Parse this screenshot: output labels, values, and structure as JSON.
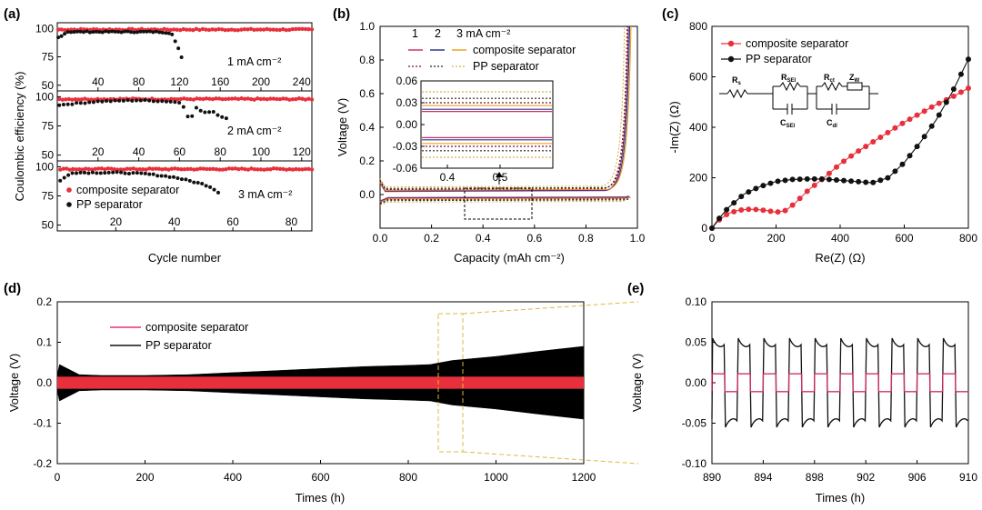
{
  "colors": {
    "composite": "#e8303c",
    "pp": "#111111",
    "orange": "#f0a020",
    "navy": "#2a3a8a",
    "magenta": "#d0306a",
    "brown": "#7a4a20",
    "dashbox": "#e0b840"
  },
  "panels": {
    "a": {
      "label": "(a)",
      "ylabel": "Coulombic efficiency (%)",
      "xlabel": "Cycle number",
      "legend": [
        "composite separator",
        "PP separator"
      ],
      "subplots": [
        {
          "annotation": "1 mA cm⁻²",
          "xticks": [
            "40",
            "80",
            "120",
            "160",
            "200",
            "240"
          ],
          "yticks": [
            "100",
            "75",
            "50"
          ]
        },
        {
          "annotation": "2 mA cm⁻²",
          "xticks": [
            "20",
            "40",
            "60",
            "80",
            "100",
            "120"
          ],
          "yticks": [
            "100",
            "75",
            "50"
          ]
        },
        {
          "annotation": "3 mA cm⁻²",
          "xticks": [
            "20",
            "40",
            "60",
            "80"
          ],
          "yticks": [
            "100",
            "75",
            "50"
          ]
        }
      ]
    },
    "b": {
      "label": "(b)",
      "xlabel": "Capacity (mAh cm⁻²)",
      "ylabel": "Voltage (V)",
      "xticks": [
        "0.0",
        "0.2",
        "0.4",
        "0.6",
        "0.8",
        "1.0"
      ],
      "yticks": [
        "1.0",
        "0.8",
        "0.6",
        "0.4",
        "0.2",
        "0.0"
      ],
      "legend_header": [
        "1",
        "2",
        "3 mA cm⁻²"
      ],
      "legend": [
        "composite separator",
        "PP separator"
      ],
      "inset": {
        "yticks": [
          "0.06",
          "0.03",
          "0.00",
          "-0.03",
          "-0.06"
        ],
        "xticks": [
          "0.4",
          "0.5"
        ]
      }
    },
    "c": {
      "label": "(c)",
      "xlabel": "Re(Z) (Ω)",
      "ylabel": "-Im(Z) (Ω)",
      "xticks": [
        "0",
        "200",
        "400",
        "600",
        "800"
      ],
      "yticks": [
        "800",
        "600",
        "400",
        "200",
        "0"
      ],
      "legend": [
        "composite separator",
        "PP separator"
      ],
      "circuit": {
        "labels": [
          "R",
          "s",
          "R",
          "SEI",
          "R",
          "ct",
          "Z",
          "W",
          "C",
          "SEI",
          "C",
          "dl"
        ]
      }
    },
    "d": {
      "label": "(d)",
      "xlabel": "Times (h)",
      "ylabel": "Voltage (V)",
      "xticks": [
        "0",
        "200",
        "400",
        "600",
        "800",
        "1000",
        "1200"
      ],
      "yticks": [
        "0.2",
        "0.1",
        "0.0",
        "-0.1",
        "-0.2"
      ],
      "legend": [
        "composite separator",
        "PP separator"
      ]
    },
    "e": {
      "label": "(e)",
      "xlabel": "Times (h)",
      "ylabel": "Voltage (V)",
      "xticks": [
        "890",
        "894",
        "898",
        "902",
        "906",
        "910"
      ],
      "yticks": [
        "0.10",
        "0.05",
        "0.00",
        "-0.05",
        "-0.10"
      ]
    }
  },
  "chart_data": [
    {
      "panel": "a",
      "type": "scatter",
      "subplots": [
        {
          "rate": "1 mA cm⁻²",
          "xlim": [
            0,
            250
          ],
          "ylim": [
            45,
            105
          ],
          "series": [
            {
              "name": "composite separator",
              "x": [
                1,
                250
              ],
              "y": [
                99,
                99
              ]
            },
            {
              "name": "PP separator",
              "x": [
                1,
                10,
                50,
                100,
                112,
                115,
                118,
                120,
                122
              ],
              "y": [
                92,
                97,
                97,
                97,
                96,
                90,
                84,
                80,
                75
              ]
            }
          ]
        },
        {
          "rate": "2 mA cm⁻²",
          "xlim": [
            0,
            125
          ],
          "ylim": [
            45,
            105
          ],
          "series": [
            {
              "name": "composite separator",
              "x": [
                1,
                125
              ],
              "y": [
                98,
                98
              ]
            },
            {
              "name": "PP separator",
              "x": [
                1,
                20,
                40,
                55,
                60,
                63,
                65,
                68,
                72,
                76,
                80,
                83
              ],
              "y": [
                93,
                96,
                97,
                96,
                95,
                90,
                78,
                91,
                86,
                88,
                83,
                82
              ]
            }
          ]
        },
        {
          "rate": "3 mA cm⁻²",
          "xlim": [
            0,
            87
          ],
          "ylim": [
            45,
            105
          ],
          "series": [
            {
              "name": "composite separator",
              "x": [
                1,
                87
              ],
              "y": [
                98,
                98
              ]
            },
            {
              "name": "PP separator",
              "x": [
                1,
                5,
                20,
                30,
                40,
                45,
                50,
                53,
                55
              ],
              "y": [
                88,
                95,
                95,
                94,
                91,
                88,
                85,
                82,
                78
              ]
            }
          ]
        }
      ]
    },
    {
      "panel": "b",
      "type": "line",
      "xlim": [
        0,
        1.0
      ],
      "ylim": [
        -0.2,
        1.0
      ],
      "series": [
        {
          "name": "composite 1 mA cm⁻²",
          "plateau": 0.018
        },
        {
          "name": "composite 2 mA cm⁻²",
          "plateau": 0.021
        },
        {
          "name": "composite 3 mA cm⁻²",
          "plateau": 0.026
        },
        {
          "name": "PP 1 mA cm⁻²",
          "plateau": 0.03
        },
        {
          "name": "PP 2 mA cm⁻²",
          "plateau": 0.036
        },
        {
          "name": "PP 3 mA cm⁻²",
          "plateau": 0.045
        }
      ],
      "inset": {
        "xlim": [
          0.35,
          0.6
        ],
        "ylim": [
          -0.06,
          0.06
        ]
      }
    },
    {
      "panel": "c",
      "type": "scatter",
      "xlim": [
        0,
        800
      ],
      "ylim": [
        0,
        800
      ],
      "series": [
        {
          "name": "composite separator",
          "x": [
            0,
            20,
            50,
            80,
            110,
            140,
            170,
            200,
            230,
            260,
            300,
            350,
            400,
            450,
            500,
            550,
            600,
            650,
            700,
            750,
            800
          ],
          "y": [
            0,
            30,
            58,
            70,
            75,
            74,
            70,
            63,
            70,
            100,
            150,
            200,
            255,
            300,
            340,
            380,
            420,
            455,
            490,
            520,
            555
          ]
        },
        {
          "name": "PP separator",
          "x": [
            0,
            20,
            50,
            100,
            150,
            200,
            250,
            300,
            350,
            400,
            450,
            500,
            550,
            600,
            650,
            700,
            750,
            800
          ],
          "y": [
            0,
            35,
            80,
            135,
            165,
            185,
            193,
            195,
            195,
            190,
            185,
            180,
            200,
            260,
            340,
            430,
            540,
            670
          ]
        }
      ]
    },
    {
      "panel": "d",
      "type": "area",
      "xlim": [
        0,
        1200
      ],
      "ylim": [
        -0.2,
        0.2
      ],
      "series": [
        {
          "name": "composite separator",
          "x": [
            0,
            1200
          ],
          "upper": [
            0.015,
            0.015
          ],
          "lower": [
            -0.015,
            -0.015
          ]
        },
        {
          "name": "PP separator",
          "x": [
            0,
            5,
            50,
            100,
            200,
            300,
            400,
            500,
            600,
            700,
            800,
            850,
            900,
            1000,
            1100,
            1200
          ],
          "upper": [
            0.02,
            0.045,
            0.02,
            0.018,
            0.018,
            0.02,
            0.025,
            0.03,
            0.035,
            0.04,
            0.043,
            0.045,
            0.055,
            0.065,
            0.078,
            0.09
          ],
          "lower": [
            -0.02,
            -0.045,
            -0.02,
            -0.018,
            -0.018,
            -0.02,
            -0.025,
            -0.03,
            -0.035,
            -0.04,
            -0.043,
            -0.045,
            -0.055,
            -0.065,
            -0.078,
            -0.09
          ]
        }
      ]
    },
    {
      "panel": "e",
      "type": "line",
      "xlim": [
        890,
        910
      ],
      "ylim": [
        -0.1,
        0.1
      ],
      "series": [
        {
          "name": "composite separator",
          "amplitude": 0.011,
          "period_h": 2
        },
        {
          "name": "PP separator",
          "amplitude_peak": 0.055,
          "amplitude_plateau": 0.045,
          "period_h": 2
        }
      ]
    }
  ]
}
